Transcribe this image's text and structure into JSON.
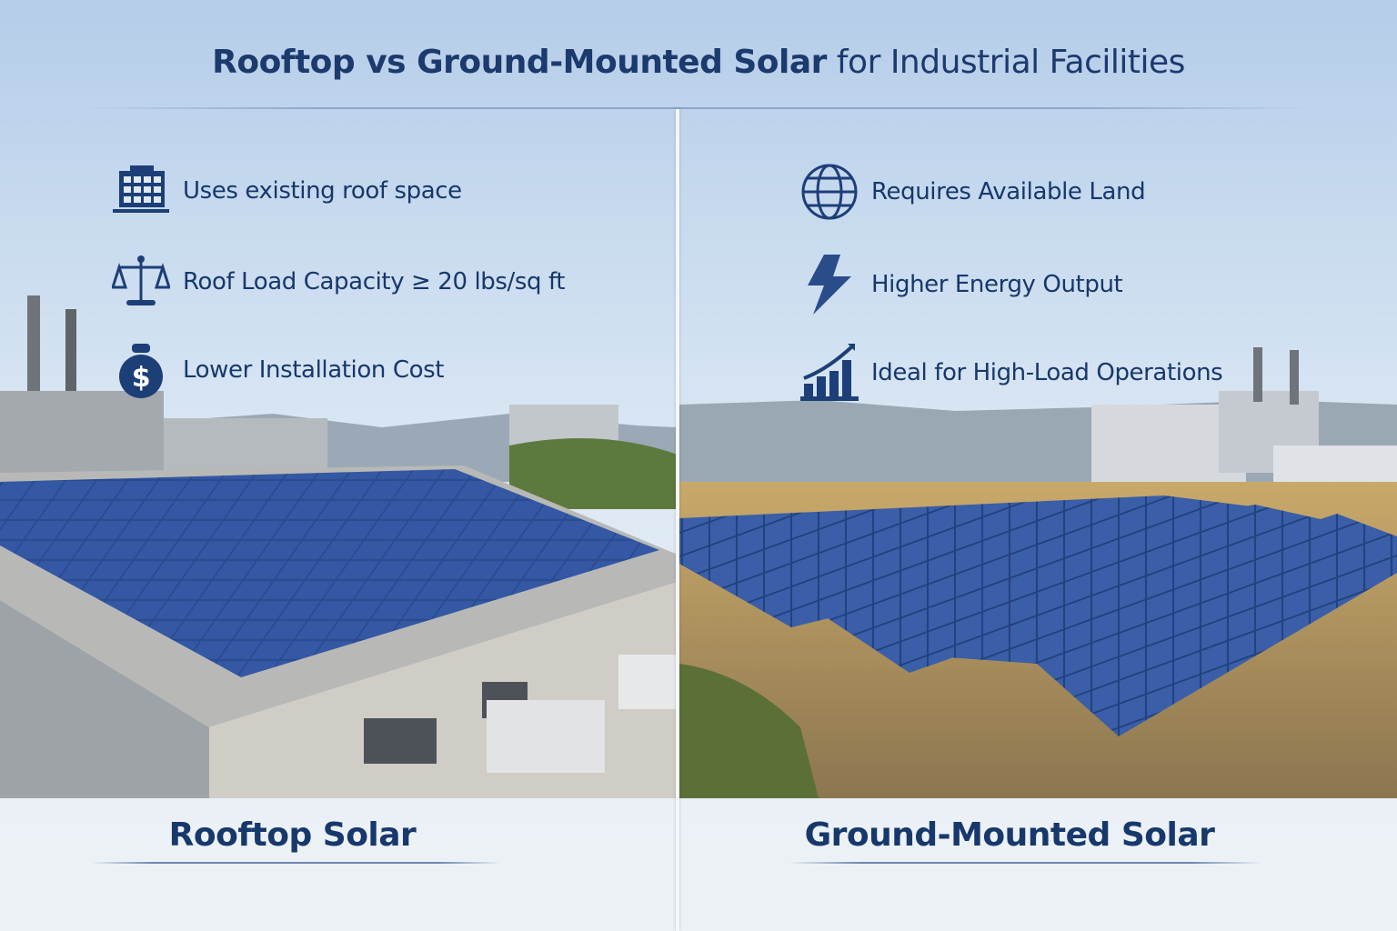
{
  "title": {
    "bold": "Rooftop vs Ground-Mounted Solar",
    "rest": "for Industrial Facilities"
  },
  "left": {
    "label": "Rooftop Solar",
    "items": [
      {
        "icon": "building-icon",
        "text": "Uses existing roof space"
      },
      {
        "icon": "scale-icon",
        "text": "Roof Load Capacity ≥ 20 lbs/sq ft"
      },
      {
        "icon": "money-bag-icon",
        "text": "Lower Installation Cost"
      }
    ]
  },
  "right": {
    "label": "Ground-Mounted Solar",
    "items": [
      {
        "icon": "globe-icon",
        "text": "Requires Available Land"
      },
      {
        "icon": "lightning-icon",
        "text": "Higher Energy Output"
      },
      {
        "icon": "growth-chart-icon",
        "text": "Ideal for High-Load Operations"
      }
    ]
  },
  "colors": {
    "text": "#17386b",
    "panel": "#23407e",
    "sky": "#cfe0f2"
  }
}
